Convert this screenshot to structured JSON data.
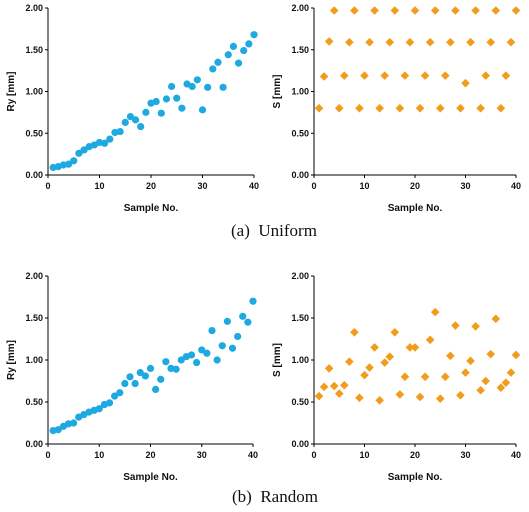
{
  "colors": {
    "circle_series": "#1fa9e1",
    "diamond_series": "#f29c1c",
    "axis": "#000000"
  },
  "captions": {
    "uniform": "(a)  Uniform",
    "random": "(b)  Random"
  },
  "chart_data": [
    {
      "id": "uniform-ry",
      "type": "scatter",
      "marker": "circle-icon",
      "xlabel": "Sample No.",
      "ylabel": "Ry [mm]",
      "xlim": [
        0,
        40
      ],
      "ylim": [
        0,
        2
      ],
      "xticks": [
        "0",
        "10",
        "20",
        "30",
        "40"
      ],
      "yticks": [
        "0.00",
        "0.50",
        "1.00",
        "1.50",
        "2.00"
      ],
      "grid": false,
      "x": [
        1,
        2,
        3,
        4,
        5,
        6,
        7,
        8,
        9,
        10,
        11,
        12,
        13,
        14,
        15,
        16,
        17,
        18,
        19,
        20,
        21,
        22,
        23,
        24,
        25,
        26,
        27,
        28,
        29,
        30,
        31,
        32,
        33,
        34,
        35,
        36,
        37,
        38,
        39,
        40
      ],
      "y": [
        0.09,
        0.1,
        0.12,
        0.13,
        0.17,
        0.26,
        0.3,
        0.34,
        0.36,
        0.39,
        0.38,
        0.43,
        0.51,
        0.52,
        0.63,
        0.7,
        0.66,
        0.58,
        0.75,
        0.86,
        0.88,
        0.74,
        0.91,
        1.06,
        0.92,
        0.8,
        1.09,
        1.06,
        1.14,
        0.78,
        1.05,
        1.27,
        1.35,
        1.05,
        1.44,
        1.54,
        1.34,
        1.49,
        1.57,
        1.68
      ]
    },
    {
      "id": "uniform-s",
      "type": "scatter",
      "marker": "diamond-icon",
      "xlabel": "Sample No.",
      "ylabel": "S [mm]",
      "xlim": [
        0,
        40
      ],
      "ylim": [
        0,
        2
      ],
      "xticks": [
        "0",
        "10",
        "20",
        "30",
        "40"
      ],
      "yticks": [
        "0.00",
        "0.50",
        "1.00",
        "1.50",
        "2.00"
      ],
      "grid": false,
      "x": [
        1,
        2,
        3,
        4,
        5,
        6,
        7,
        8,
        9,
        10,
        11,
        12,
        13,
        14,
        15,
        16,
        17,
        18,
        19,
        20,
        21,
        22,
        23,
        24,
        25,
        26,
        27,
        28,
        29,
        30,
        31,
        32,
        33,
        34,
        35,
        36,
        37,
        38,
        39,
        40
      ],
      "y": [
        0.8,
        1.18,
        1.6,
        1.97,
        0.8,
        1.19,
        1.59,
        1.97,
        0.8,
        1.19,
        1.59,
        1.97,
        0.8,
        1.19,
        1.59,
        1.97,
        0.8,
        1.19,
        1.59,
        1.97,
        0.8,
        1.19,
        1.59,
        1.97,
        0.8,
        1.19,
        1.59,
        1.97,
        0.8,
        1.1,
        1.59,
        1.97,
        0.8,
        1.19,
        1.59,
        1.97,
        0.8,
        1.19,
        1.59,
        1.97
      ]
    },
    {
      "id": "random-ry",
      "type": "scatter",
      "marker": "circle-icon",
      "xlabel": "Sample No.",
      "ylabel": "Ry [mm]",
      "xlim": [
        0,
        40
      ],
      "ylim": [
        0,
        2
      ],
      "xticks": [
        "0",
        "10",
        "20",
        "30",
        "40"
      ],
      "yticks": [
        "0.00",
        "0.50",
        "1.00",
        "1.50",
        "2.00"
      ],
      "grid": false,
      "x": [
        1,
        2,
        3,
        4,
        5,
        6,
        7,
        8,
        9,
        10,
        11,
        12,
        13,
        14,
        15,
        16,
        17,
        18,
        19,
        20,
        21,
        22,
        23,
        24,
        25,
        26,
        27,
        28,
        29,
        30,
        31,
        32,
        33,
        34,
        35,
        36,
        37,
        38,
        39,
        40
      ],
      "y": [
        0.16,
        0.17,
        0.21,
        0.24,
        0.25,
        0.32,
        0.35,
        0.38,
        0.4,
        0.42,
        0.47,
        0.49,
        0.57,
        0.61,
        0.72,
        0.8,
        0.72,
        0.85,
        0.81,
        0.9,
        0.65,
        0.77,
        0.98,
        0.9,
        0.89,
        1.0,
        1.04,
        1.06,
        0.97,
        1.12,
        1.08,
        1.35,
        1.0,
        1.17,
        1.46,
        1.14,
        1.28,
        1.52,
        1.45,
        1.7
      ]
    },
    {
      "id": "random-s",
      "type": "scatter",
      "marker": "diamond-icon",
      "xlabel": "Sample No.",
      "ylabel": "S [mm]",
      "xlim": [
        0,
        40
      ],
      "ylim": [
        0,
        2
      ],
      "xticks": [
        "0",
        "10",
        "20",
        "30",
        "40"
      ],
      "yticks": [
        "0.00",
        "0.50",
        "1.00",
        "1.50",
        "2.00"
      ],
      "grid": false,
      "x": [
        1,
        2,
        3,
        4,
        5,
        6,
        7,
        8,
        9,
        10,
        11,
        12,
        13,
        14,
        15,
        16,
        17,
        18,
        19,
        20,
        21,
        22,
        23,
        24,
        25,
        26,
        27,
        28,
        29,
        30,
        31,
        32,
        33,
        34,
        35,
        36,
        37,
        38,
        39,
        40
      ],
      "y": [
        0.57,
        0.68,
        0.9,
        0.69,
        0.6,
        0.7,
        0.98,
        1.33,
        0.55,
        0.82,
        0.91,
        1.15,
        0.52,
        0.97,
        1.04,
        1.33,
        0.59,
        0.8,
        1.15,
        1.15,
        0.56,
        0.8,
        1.24,
        1.57,
        0.54,
        0.8,
        1.05,
        1.41,
        0.58,
        0.85,
        0.99,
        1.4,
        0.64,
        0.75,
        1.07,
        1.49,
        0.67,
        0.73,
        0.85,
        1.06
      ]
    }
  ]
}
